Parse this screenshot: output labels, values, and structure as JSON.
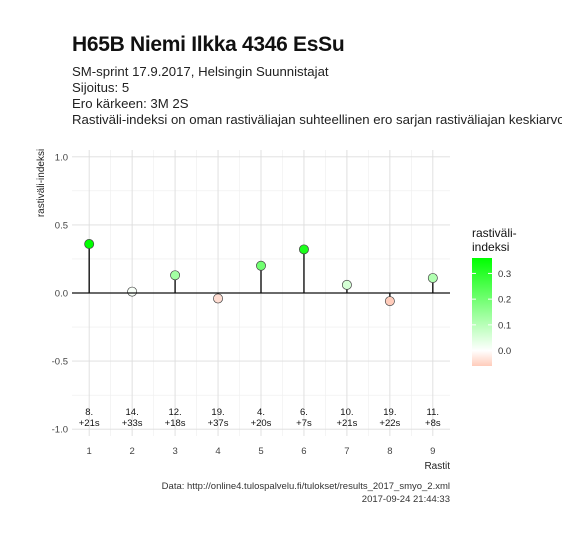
{
  "header": {
    "title": "H65B Niemi Ilkka 4346 EsSu",
    "lines": [
      "SM-sprint 17.9.2017, Helsingin Suunnistajat",
      "Sijoitus: 5",
      "Ero kärkeen: 3M 2S",
      "Rastiväli-indeksi on oman rastiväliajan suhteellinen ero sarjan rastiväliajan keskiarvoon"
    ]
  },
  "footer": {
    "source": "Data: http://online4.tulospalvelu.fi/tulokset/results_2017_smyo_2.xml",
    "timestamp": "2017-09-24 21:44:33"
  },
  "chart_data": {
    "type": "scatter",
    "x": [
      1,
      2,
      3,
      4,
      5,
      6,
      7,
      8,
      9
    ],
    "values": [
      0.36,
      0.01,
      0.13,
      -0.04,
      0.2,
      0.32,
      0.06,
      -0.06,
      0.11
    ],
    "labels_rank": [
      "8.",
      "14.",
      "12.",
      "19.",
      "4.",
      "6.",
      "10.",
      "19.",
      "11."
    ],
    "labels_time": [
      "+21s",
      "+33s",
      "+18s",
      "+37s",
      "+20s",
      "+7s",
      "+21s",
      "+22s",
      "+8s"
    ],
    "xlabel": "Rastit",
    "ylabel": "rastiväli-indeksi",
    "xticks": [
      "1",
      "2",
      "3",
      "4",
      "5",
      "6",
      "7",
      "8",
      "9"
    ],
    "yticks": [
      "-1.0",
      "-0.5",
      "0.0",
      "0.5",
      "1.0"
    ],
    "yticks_values": [
      -1.0,
      -0.5,
      0.0,
      0.5,
      1.0
    ],
    "ylim": [
      -1.05,
      1.05
    ],
    "xlim": [
      0.6,
      9.4
    ],
    "grid": true,
    "legend": {
      "title_lines": [
        "rastiväli-",
        "indeksi"
      ],
      "ticks": [
        "0.0",
        "0.1",
        "0.2",
        "0.3"
      ],
      "tick_values": [
        0.0,
        0.1,
        0.2,
        0.3
      ],
      "range": [
        -0.06,
        0.36
      ],
      "placement": "right",
      "color_low": "#ffccbb",
      "color_mid": "#ffffff",
      "color_high": "#00ff00"
    },
    "colors": {
      "stem": "#111111",
      "zero_line": "#111111",
      "grid": "#dddddd",
      "point_outline": "#444444"
    }
  }
}
